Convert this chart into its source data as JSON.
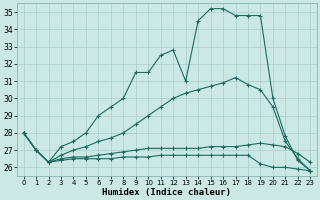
{
  "xlabel": "Humidex (Indice chaleur)",
  "xlim": [
    -0.5,
    23.5
  ],
  "ylim": [
    25.5,
    35.5
  ],
  "yticks": [
    26,
    27,
    28,
    29,
    30,
    31,
    32,
    33,
    34,
    35
  ],
  "xticks": [
    0,
    1,
    2,
    3,
    4,
    5,
    6,
    7,
    8,
    9,
    10,
    11,
    12,
    13,
    14,
    15,
    16,
    17,
    18,
    19,
    20,
    21,
    22,
    23
  ],
  "bg_color": "#cce8e4",
  "grid_color": "#aacfcb",
  "line_color": "#1a6b60",
  "series": [
    [
      28.0,
      27.0,
      26.3,
      27.2,
      27.5,
      28.0,
      29.0,
      29.5,
      30.0,
      31.5,
      31.5,
      32.5,
      32.8,
      31.0,
      34.5,
      35.2,
      35.2,
      34.8,
      34.8,
      34.8,
      30.0,
      27.8,
      26.4,
      25.8
    ],
    [
      28.0,
      27.0,
      26.3,
      26.7,
      27.0,
      27.2,
      27.5,
      27.7,
      28.0,
      28.5,
      29.0,
      29.5,
      30.0,
      30.3,
      30.5,
      30.7,
      30.9,
      31.2,
      30.8,
      30.5,
      29.5,
      27.5,
      26.5,
      25.8
    ],
    [
      28.0,
      27.0,
      26.3,
      26.5,
      26.6,
      26.6,
      26.7,
      26.8,
      26.9,
      27.0,
      27.1,
      27.1,
      27.1,
      27.1,
      27.1,
      27.2,
      27.2,
      27.2,
      27.3,
      27.4,
      27.3,
      27.2,
      26.8,
      26.3
    ],
    [
      28.0,
      27.0,
      26.3,
      26.4,
      26.5,
      26.5,
      26.5,
      26.5,
      26.6,
      26.6,
      26.6,
      26.7,
      26.7,
      26.7,
      26.7,
      26.7,
      26.7,
      26.7,
      26.7,
      26.2,
      26.0,
      26.0,
      25.9,
      25.8
    ]
  ]
}
